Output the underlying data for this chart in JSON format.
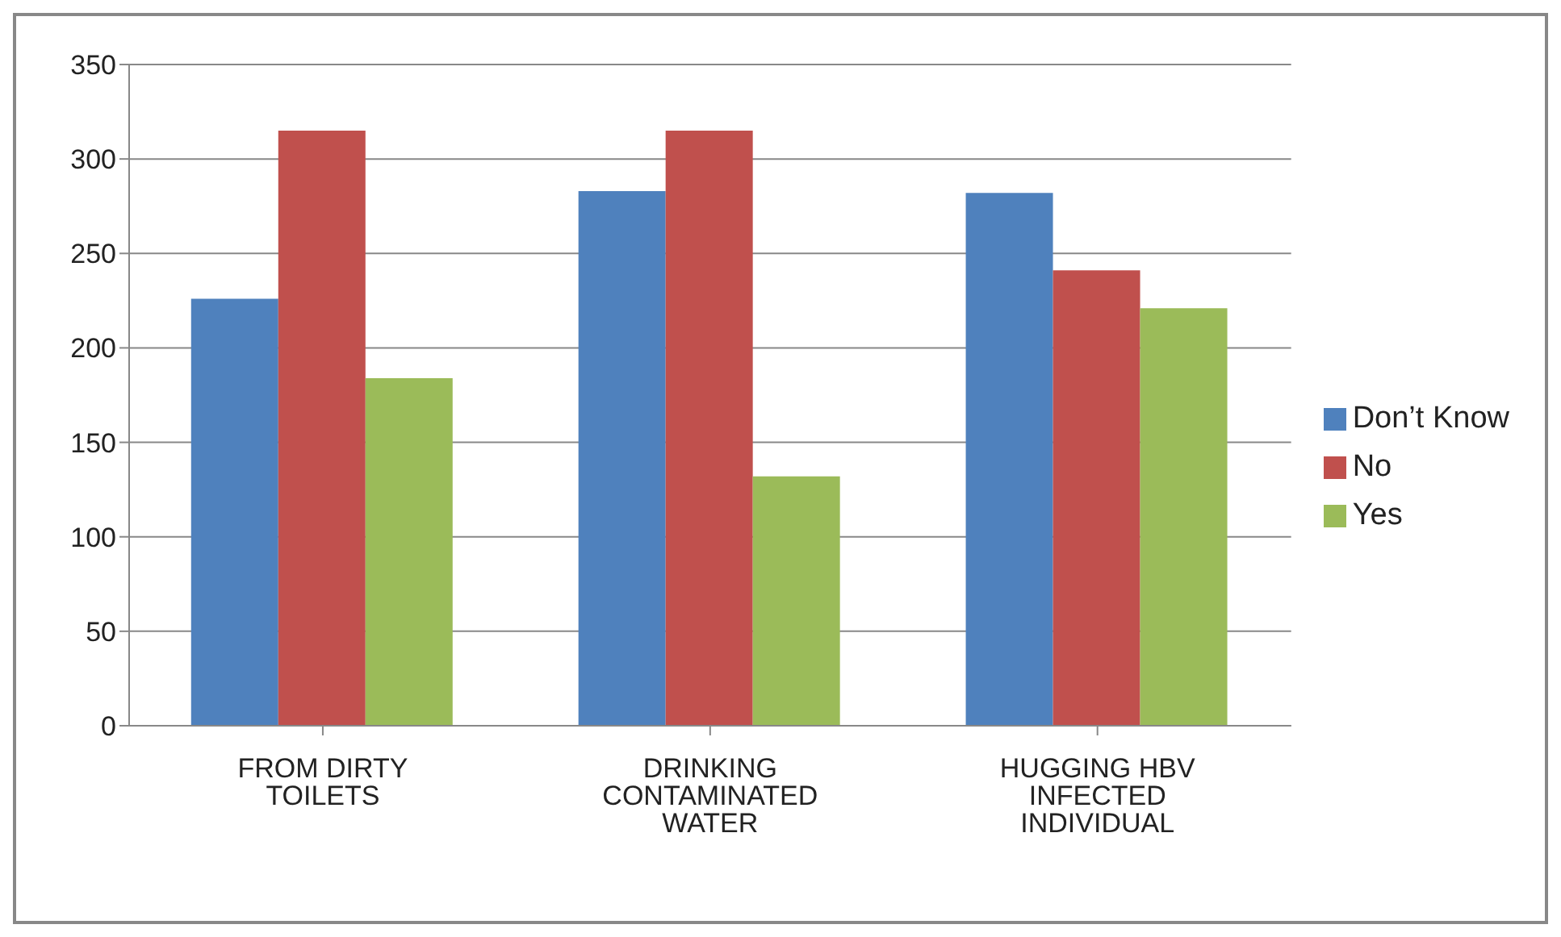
{
  "chart_data": {
    "type": "bar",
    "categories": [
      "FROM DIRTY TOILETS",
      "DRINKING CONTAMINATED WATER",
      "HUGGING HBV INFECTED INDIVIDUAL"
    ],
    "series": [
      {
        "name": "Don’t Know",
        "color": "#4f81bd",
        "values": [
          226,
          283,
          282
        ]
      },
      {
        "name": "No",
        "color": "#c0504d",
        "values": [
          315,
          315,
          241
        ]
      },
      {
        "name": "Yes",
        "color": "#9bbb59",
        "values": [
          184,
          132,
          221
        ]
      }
    ],
    "ylim": [
      0,
      350
    ],
    "yticks": [
      0,
      50,
      100,
      150,
      200,
      250,
      300,
      350
    ],
    "grid": "y",
    "legend": "right"
  }
}
